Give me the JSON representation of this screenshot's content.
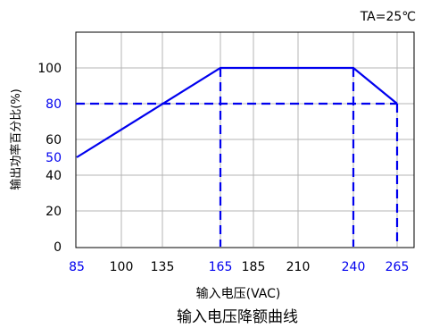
{
  "chart_data": {
    "type": "line",
    "title": "输入电压降额曲线",
    "annotation": "TA=25℃",
    "xlabel": "输入电压(VAC)",
    "ylabel": "输出功率百分比(%)",
    "x_ticks": [
      {
        "label": "85",
        "value": 85,
        "highlight": true
      },
      {
        "label": "100",
        "value": 100,
        "highlight": false
      },
      {
        "label": "135",
        "value": 135,
        "highlight": false
      },
      {
        "label": "165",
        "value": 165,
        "highlight": true
      },
      {
        "label": "185",
        "value": 185,
        "highlight": false
      },
      {
        "label": "210",
        "value": 210,
        "highlight": false
      },
      {
        "label": "240",
        "value": 240,
        "highlight": true
      },
      {
        "label": "265",
        "value": 265,
        "highlight": true
      }
    ],
    "y_ticks": [
      {
        "label": "100",
        "value": 100,
        "highlight": false
      },
      {
        "label": "80",
        "value": 80,
        "highlight": true
      },
      {
        "label": "60",
        "value": 60,
        "highlight": false
      },
      {
        "label": "50",
        "value": 50,
        "highlight": true
      },
      {
        "label": "40",
        "value": 40,
        "highlight": false
      },
      {
        "label": "20",
        "value": 20,
        "highlight": false
      },
      {
        "label": "0",
        "value": 0,
        "highlight": false
      }
    ],
    "ylim": [
      0,
      120
    ],
    "grid": true,
    "series": [
      {
        "points": [
          [
            85,
            50
          ],
          [
            165,
            100
          ],
          [
            240,
            100
          ],
          [
            265,
            80
          ]
        ],
        "color": "#0000ee",
        "style": "solid"
      }
    ],
    "reference_lines": [
      {
        "orientation": "horizontal",
        "value": 80,
        "color": "#0000ee",
        "style": "dashed"
      },
      {
        "orientation": "vertical",
        "value": 165,
        "color": "#0000ee",
        "style": "dashed"
      },
      {
        "orientation": "vertical",
        "value": 240,
        "color": "#0000ee",
        "style": "dashed"
      },
      {
        "orientation": "vertical",
        "value": 265,
        "color": "#0000ee",
        "style": "dashed"
      }
    ],
    "colors": {
      "highlight": "#0000ee",
      "text": "#000000",
      "grid": "#b4b4b4"
    }
  }
}
